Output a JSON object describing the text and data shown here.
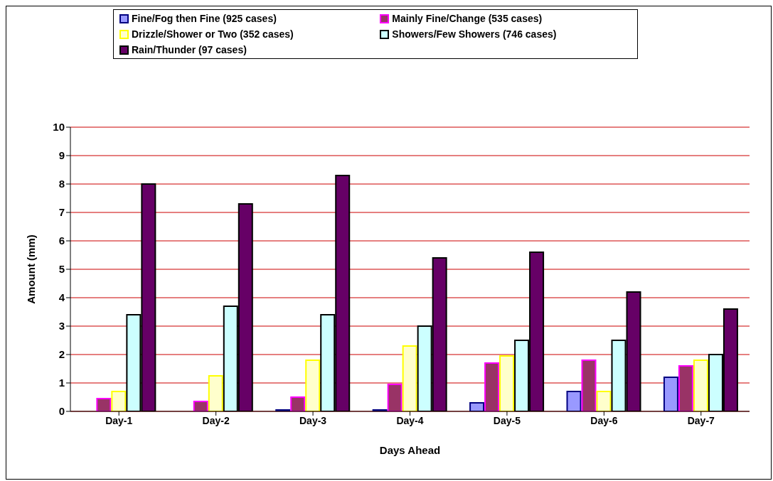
{
  "chart_data": {
    "type": "bar",
    "xlabel": "Days Ahead",
    "ylabel": "Amount (mm)",
    "categories": [
      "Day-1",
      "Day-2",
      "Day-3",
      "Day-4",
      "Day-5",
      "Day-6",
      "Day-7"
    ],
    "series": [
      {
        "name": "Fine/Fog then Fine (925 cases)",
        "color": "#9999ff",
        "values": [
          0,
          0,
          0.05,
          0.05,
          0.3,
          0.7,
          1.2
        ]
      },
      {
        "name": "Mainly Fine/Change (535 cases)",
        "color": "#993366",
        "values": [
          0.45,
          0.35,
          0.5,
          0.95,
          1.7,
          1.8,
          1.6
        ]
      },
      {
        "name": "Drizzle/Shower or Two (352 cases)",
        "color": "#ffffcc",
        "values": [
          0.7,
          1.25,
          1.8,
          2.3,
          1.95,
          0.7,
          1.8
        ]
      },
      {
        "name": "Showers/Few Showers (746 cases)",
        "color": "#ccffff",
        "values": [
          3.4,
          3.7,
          3.4,
          3.0,
          2.5,
          2.5,
          2.0
        ]
      },
      {
        "name": "Rain/Thunder (97 cases)",
        "color": "#660066",
        "values": [
          8.0,
          7.3,
          8.3,
          5.4,
          5.6,
          4.2,
          3.6
        ]
      }
    ],
    "ylim": [
      0,
      10
    ],
    "yticks": [
      0,
      1,
      2,
      3,
      4,
      5,
      6,
      7,
      8,
      9,
      10
    ],
    "grid": "y",
    "legend": "top"
  }
}
